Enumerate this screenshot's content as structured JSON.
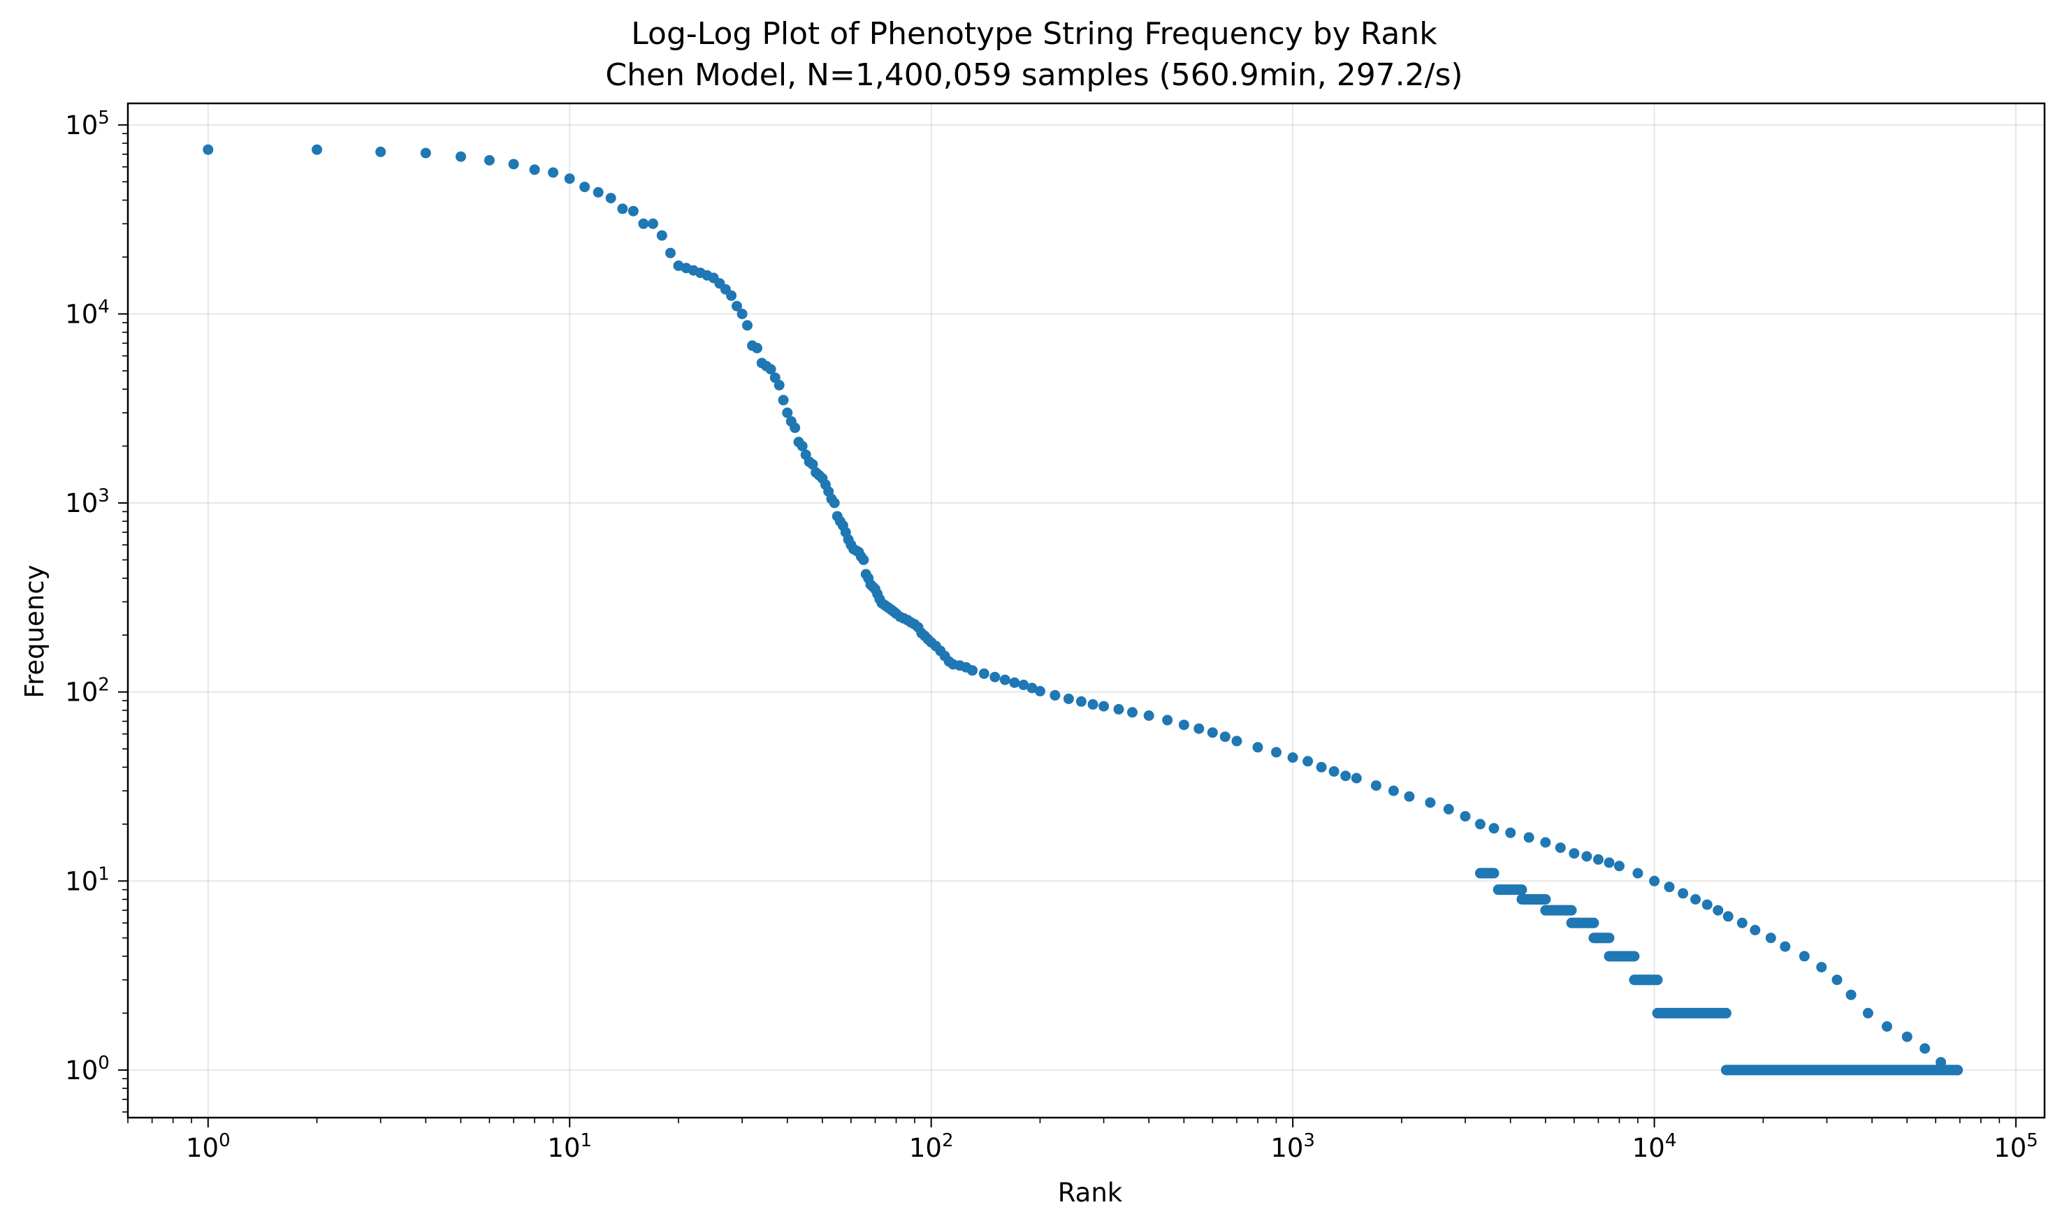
{
  "chart_data": {
    "type": "scatter",
    "title": "Log-Log Plot of Phenotype String Frequency by Rank",
    "subtitle": "Chen Model, N=1,400,059 samples (560.9min, 297.2/s)",
    "xlabel": "Rank",
    "ylabel": "Frequency",
    "xscale": "log",
    "yscale": "log",
    "xlim": [
      0.6,
      120000
    ],
    "ylim": [
      0.56,
      130000
    ],
    "grid": true,
    "color": "#1f77b4",
    "xticks": [
      {
        "base": "10",
        "exp": "0",
        "value": 1
      },
      {
        "base": "10",
        "exp": "1",
        "value": 10
      },
      {
        "base": "10",
        "exp": "2",
        "value": 100
      },
      {
        "base": "10",
        "exp": "3",
        "value": 1000
      },
      {
        "base": "10",
        "exp": "4",
        "value": 10000
      },
      {
        "base": "10",
        "exp": "5",
        "value": 100000
      }
    ],
    "yticks": [
      {
        "base": "10",
        "exp": "0",
        "value": 1
      },
      {
        "base": "10",
        "exp": "1",
        "value": 10
      },
      {
        "base": "10",
        "exp": "2",
        "value": 100
      },
      {
        "base": "10",
        "exp": "3",
        "value": 1000
      },
      {
        "base": "10",
        "exp": "4",
        "value": 10000
      },
      {
        "base": "10",
        "exp": "5",
        "value": 100000
      }
    ],
    "points": [
      [
        1,
        74000
      ],
      [
        2,
        74000
      ],
      [
        3,
        72000
      ],
      [
        4,
        71000
      ],
      [
        5,
        68000
      ],
      [
        6,
        65000
      ],
      [
        7,
        62000
      ],
      [
        8,
        58000
      ],
      [
        9,
        56000
      ],
      [
        10,
        52000
      ],
      [
        11,
        47000
      ],
      [
        12,
        44000
      ],
      [
        13,
        41000
      ],
      [
        14,
        36000
      ],
      [
        15,
        35000
      ],
      [
        16,
        30000
      ],
      [
        17,
        30000
      ],
      [
        18,
        26000
      ],
      [
        19,
        21000
      ],
      [
        20,
        18000
      ],
      [
        21,
        17500
      ],
      [
        22,
        17000
      ],
      [
        23,
        16500
      ],
      [
        24,
        16000
      ],
      [
        25,
        15500
      ],
      [
        26,
        14500
      ],
      [
        27,
        13500
      ],
      [
        28,
        12500
      ],
      [
        29,
        11000
      ],
      [
        30,
        10000
      ],
      [
        31,
        8700
      ],
      [
        32,
        6800
      ],
      [
        33,
        6600
      ],
      [
        34,
        5500
      ],
      [
        35,
        5300
      ],
      [
        36,
        5100
      ],
      [
        37,
        4600
      ],
      [
        38,
        4200
      ],
      [
        39,
        3500
      ],
      [
        40,
        3000
      ],
      [
        41,
        2700
      ],
      [
        42,
        2500
      ],
      [
        43,
        2100
      ],
      [
        44,
        2000
      ],
      [
        45,
        1800
      ],
      [
        46,
        1650
      ],
      [
        47,
        1600
      ],
      [
        48,
        1450
      ],
      [
        49,
        1400
      ],
      [
        50,
        1350
      ],
      [
        51,
        1250
      ],
      [
        52,
        1150
      ],
      [
        53,
        1050
      ],
      [
        54,
        1000
      ],
      [
        55,
        850
      ],
      [
        56,
        800
      ],
      [
        57,
        760
      ],
      [
        58,
        700
      ],
      [
        59,
        640
      ],
      [
        60,
        600
      ],
      [
        61,
        570
      ],
      [
        62,
        560
      ],
      [
        63,
        550
      ],
      [
        64,
        520
      ],
      [
        65,
        500
      ],
      [
        66,
        420
      ],
      [
        67,
        400
      ],
      [
        68,
        370
      ],
      [
        69,
        360
      ],
      [
        70,
        350
      ],
      [
        71,
        330
      ],
      [
        72,
        310
      ],
      [
        73,
        295
      ],
      [
        74,
        290
      ],
      [
        75,
        285
      ],
      [
        76,
        280
      ],
      [
        77,
        275
      ],
      [
        78,
        270
      ],
      [
        79,
        265
      ],
      [
        80,
        260
      ],
      [
        82,
        250
      ],
      [
        84,
        245
      ],
      [
        86,
        240
      ],
      [
        88,
        233
      ],
      [
        90,
        228
      ],
      [
        92,
        220
      ],
      [
        94,
        205
      ],
      [
        96,
        198
      ],
      [
        98,
        190
      ],
      [
        100,
        183
      ],
      [
        103,
        175
      ],
      [
        106,
        165
      ],
      [
        109,
        155
      ],
      [
        112,
        145
      ],
      [
        115,
        140
      ],
      [
        120,
        138
      ],
      [
        125,
        135
      ],
      [
        130,
        130
      ],
      [
        140,
        125
      ],
      [
        150,
        120
      ],
      [
        160,
        116
      ],
      [
        170,
        112
      ],
      [
        180,
        109
      ],
      [
        190,
        105
      ],
      [
        200,
        101
      ],
      [
        220,
        96
      ],
      [
        240,
        92
      ],
      [
        260,
        89
      ],
      [
        280,
        86
      ],
      [
        300,
        84
      ],
      [
        330,
        81
      ],
      [
        360,
        78
      ],
      [
        400,
        75
      ],
      [
        450,
        71
      ],
      [
        500,
        67
      ],
      [
        550,
        64
      ],
      [
        600,
        61
      ],
      [
        650,
        58
      ],
      [
        700,
        55
      ],
      [
        800,
        51
      ],
      [
        900,
        48
      ],
      [
        1000,
        45
      ],
      [
        1100,
        43
      ],
      [
        1200,
        40
      ],
      [
        1300,
        38
      ],
      [
        1400,
        36
      ],
      [
        1500,
        35
      ],
      [
        1700,
        32
      ],
      [
        1900,
        30
      ],
      [
        2100,
        28
      ],
      [
        2400,
        26
      ],
      [
        2700,
        24
      ],
      [
        3000,
        22
      ],
      [
        3300,
        20
      ],
      [
        3600,
        19
      ],
      [
        4000,
        18
      ],
      [
        4500,
        17
      ],
      [
        5000,
        16
      ],
      [
        5500,
        15
      ],
      [
        6000,
        14
      ],
      [
        6500,
        13.5
      ],
      [
        7000,
        13
      ],
      [
        7500,
        12.5
      ],
      [
        8000,
        12
      ],
      [
        9000,
        11
      ],
      [
        10000,
        10
      ],
      [
        11000,
        9.3
      ],
      [
        12000,
        8.6
      ],
      [
        13000,
        8
      ],
      [
        14000,
        7.5
      ],
      [
        15000,
        7
      ],
      [
        16000,
        6.5
      ],
      [
        17500,
        6
      ],
      [
        19000,
        5.5
      ],
      [
        21000,
        5
      ],
      [
        23000,
        4.5
      ],
      [
        26000,
        4
      ],
      [
        29000,
        3.5
      ],
      [
        32000,
        3
      ],
      [
        35000,
        2.5
      ],
      [
        39000,
        2
      ],
      [
        44000,
        1.7
      ],
      [
        50000,
        1.5
      ],
      [
        56000,
        1.3
      ],
      [
        62000,
        1.1
      ],
      [
        69000,
        1
      ]
    ]
  }
}
